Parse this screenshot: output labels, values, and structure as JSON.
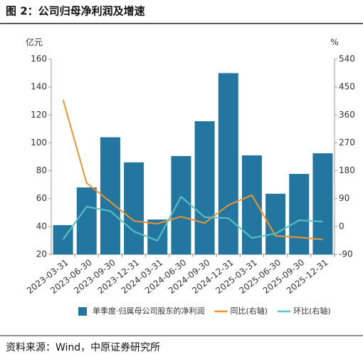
{
  "chart_data": {
    "type": "bar-line",
    "title": "图 2：公司归母净利润及增速",
    "ylabel": "亿元",
    "y2label": "%",
    "categories": [
      "2023-03-31",
      "2023-06-30",
      "2023-09-30",
      "2023-12-31",
      "2024-03-31",
      "2024-06-30",
      "2024-09-30",
      "2024-12-31",
      "2025-03-31",
      "2025-06-30",
      "2025-09-30",
      "2025-12-31"
    ],
    "series": [
      {
        "name": "单季度·归属母公司股东的净利润",
        "type": "bar",
        "color": "#23769f",
        "values": [
          41,
          68,
          104,
          86,
          45,
          90.5,
          115.5,
          150,
          91,
          63.5,
          77.7,
          92.5
        ]
      },
      {
        "name": "同比(右轴)",
        "type": "line",
        "axis": "y2",
        "color": "#f0922e",
        "values": [
          409,
          140,
          80,
          18,
          9,
          32,
          11,
          69,
          101,
          -30,
          -35,
          -42
        ]
      },
      {
        "name": "环比(右轴)",
        "type": "line",
        "axis": "y2",
        "color": "#5cc3c3",
        "values": [
          -42,
          64,
          50,
          -16,
          -46,
          96,
          30,
          27,
          -37,
          -23,
          20,
          16
        ]
      }
    ],
    "ylim": [
      20,
      160
    ],
    "yticks": [
      20,
      40,
      60,
      80,
      100,
      120,
      140,
      160
    ],
    "y2lim": [
      -90,
      540
    ],
    "y2ticks": [
      -90,
      0,
      90,
      180,
      270,
      360,
      450,
      540
    ],
    "legend": "bottom",
    "source": "资料来源：Wind，中原证券研究所"
  }
}
